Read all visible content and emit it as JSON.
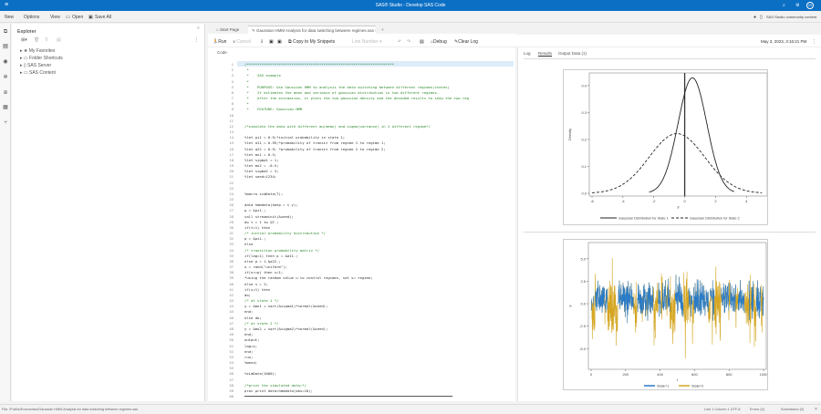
{
  "app": {
    "title": "SAS® Studio - Develop SAS Code",
    "menu_icon": "hamburger-icon"
  },
  "menu": {
    "items": [
      "New",
      "Options",
      "View",
      "Open",
      "Save All"
    ],
    "community": "SAS Studio community content",
    "avatar": "M"
  },
  "explorer": {
    "title": "Explorer",
    "items": [
      "My Favorites",
      "Folder Shortcuts",
      "SAS Server",
      "SAS Content"
    ]
  },
  "tabs": {
    "start": "Start Page",
    "program": "Gaussian HMM Analysis for data switching between regimes.sas"
  },
  "toolbar": {
    "run": "Run",
    "cancel": "Cancel",
    "copy": "Copy to My Snippets",
    "format": "Line Number",
    "debug": "Debug",
    "clear_log": "Clear Log",
    "timestamp": "May 3, 2023, 3:16:21 PM"
  },
  "editor": {
    "tab": "Code",
    "lines": [
      "/*********************************************************************",
      " *",
      " *    SAS example",
      " *",
      " *    PURPOSE: Use Gaussian HMM to analysis the data switching between different regimes(states)",
      " *    It estimates the mean and variance of gaussian distribution in two different regimes.",
      " *    After the estimation, it plots the two gaussian density and the decoded results to show the two reg",
      " *",
      " *    FEATURE: Gaussian HMM",
      "",
      "",
      "/*simulate the data with different mu(mean) and sigma(variance) in 2 different regime*/",
      "",
      "%let pi1 = 0.9;*initial probability in state 1;",
      "%let a11 = 0.95;*probability of transit from regime 1 to regime 1;",
      "%let a22 = 0.9; *probability of transit from regime 2 to regime 2;",
      "%let mu1 = 0.5;",
      "%let sigma1 = 1;",
      "%let mu2 = -0.5;",
      "%let sigma2 = 3;",
      "%let seed=1234;",
      "",
      "",
      "%macro simData(T);",
      "",
      "data hmmdata(keep = t y);",
      "p = &pi1.;",
      "call streaminit(&seed);",
      "do t = 1 to &T.;",
      "if(t=1) then",
      "/* initial probability distribution */",
      "p = &pi1.;",
      "else",
      "/* transition probability matrix */",
      "if(lag=1) then p = &a11.;",
      "else p = 1-&a22.;",
      "u = rand(\"uniform\");",
      "if(u<=p) then s=1;",
      "*using the random value u to control regimes, set s= regime;",
      "else s = 2;",
      "if(s=1) then",
      "do;",
      "/* at state 1 */",
      "y = &mu1 + sqrt(&sigma1)*normal(&seed);",
      "end;",
      "else do;",
      "/* at state 2 */",
      "y = &mu2 + sqrt(&sigma2)*normal(&seed);",
      "end;",
      "output;",
      "lag=s;",
      "end;",
      "run;",
      "%mend;",
      "",
      "%simData(1000);",
      "",
      "/*print the simulated data;*/",
      "proc print data=hmmdata(obs=10);",
      ""
    ]
  },
  "results": {
    "tabs": [
      "Log",
      "Results",
      "Output Data (1)"
    ],
    "active": "Results"
  },
  "chart_data": [
    {
      "type": "line",
      "xlabel": "y",
      "ylabel": "Density",
      "xlim": [
        -6,
        5
      ],
      "ylim": [
        0,
        0.43
      ],
      "xticks": [
        -6,
        -4,
        -2,
        0,
        2,
        4
      ],
      "yticks": [
        "0.0",
        "0.1",
        "0.2",
        "0.3",
        "0.4"
      ],
      "reference_line_x": 0,
      "series": [
        {
          "name": "Gaussian Distribution for State 1",
          "mean": 0.5,
          "sd": 0.93,
          "x_range": [
            -2.3,
            3.2
          ],
          "style": "solid"
        },
        {
          "name": "Gaussian Distribution for State 2",
          "mean": -0.5,
          "sd": 1.8,
          "x_range": [
            -6,
            5
          ],
          "style": "dashed"
        }
      ],
      "legend": "bottom"
    },
    {
      "type": "line",
      "xlabel": "t",
      "ylabel": "y",
      "xlim": [
        0,
        1000
      ],
      "ylim": [
        -7,
        6.5
      ],
      "xticks": [
        0,
        200,
        400,
        600,
        800,
        1000
      ],
      "yticks": [
        "-5.0",
        "-2.5",
        "0.0",
        "2.5",
        "5.0"
      ],
      "series": [
        {
          "name": "State=1",
          "color": "#2a7bc8"
        },
        {
          "name": "State=2",
          "color": "#d4a520"
        }
      ],
      "legend": "bottom"
    }
  ],
  "status": {
    "path": "File: /Public/Economics/Gaussian HMM Analysis for data switching between regimes.sas",
    "cursor": "Line 1 Column 1 UTF-8",
    "errors": "Errors (0)",
    "submission": "Submission (0)"
  }
}
